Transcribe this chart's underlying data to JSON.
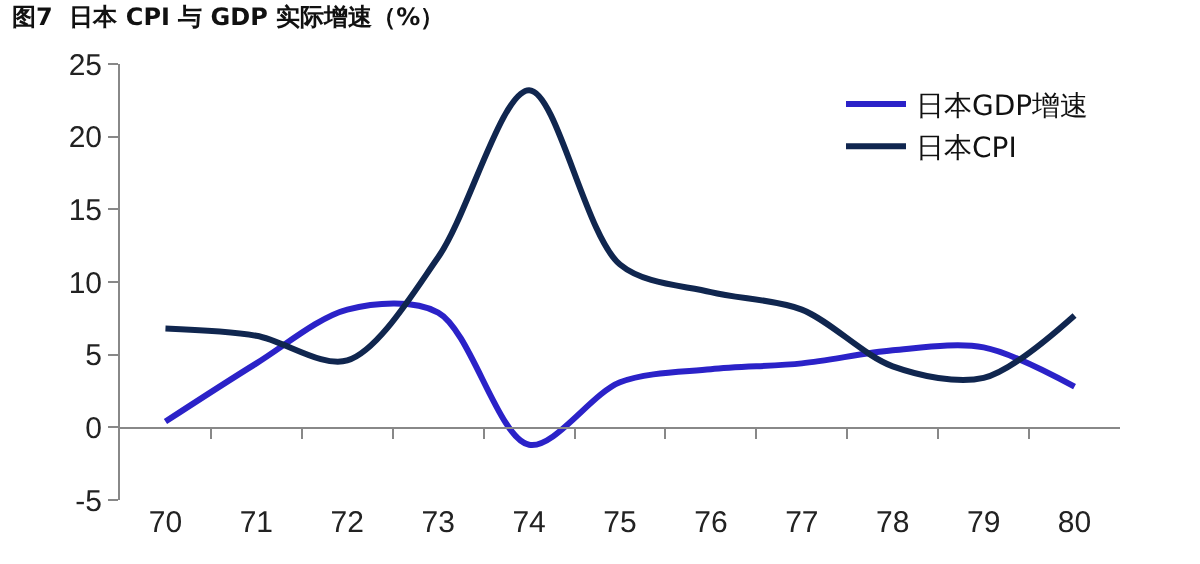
{
  "chart_data": {
    "type": "line",
    "title": "图7  日本 CPI 与 GDP 实际增速（%）",
    "categories": [
      "70",
      "71",
      "72",
      "73",
      "74",
      "75",
      "76",
      "77",
      "78",
      "79",
      "80"
    ],
    "series": [
      {
        "name": "日本GDP增速",
        "color": "#2b22c8",
        "values": [
          0.4,
          4.4,
          8.1,
          7.9,
          -1.2,
          3.1,
          4.0,
          4.4,
          5.3,
          5.5,
          2.8
        ]
      },
      {
        "name": "日本CPI",
        "color": "#10264f",
        "values": [
          6.8,
          6.3,
          4.6,
          11.7,
          23.2,
          11.2,
          9.3,
          8.1,
          4.2,
          3.4,
          7.7
        ]
      }
    ],
    "ylim": [
      -5,
      25
    ],
    "yticks": [
      -5,
      0,
      5,
      10,
      15,
      20,
      25
    ],
    "legend": "top right",
    "marker": "none",
    "line_style": "solid"
  }
}
